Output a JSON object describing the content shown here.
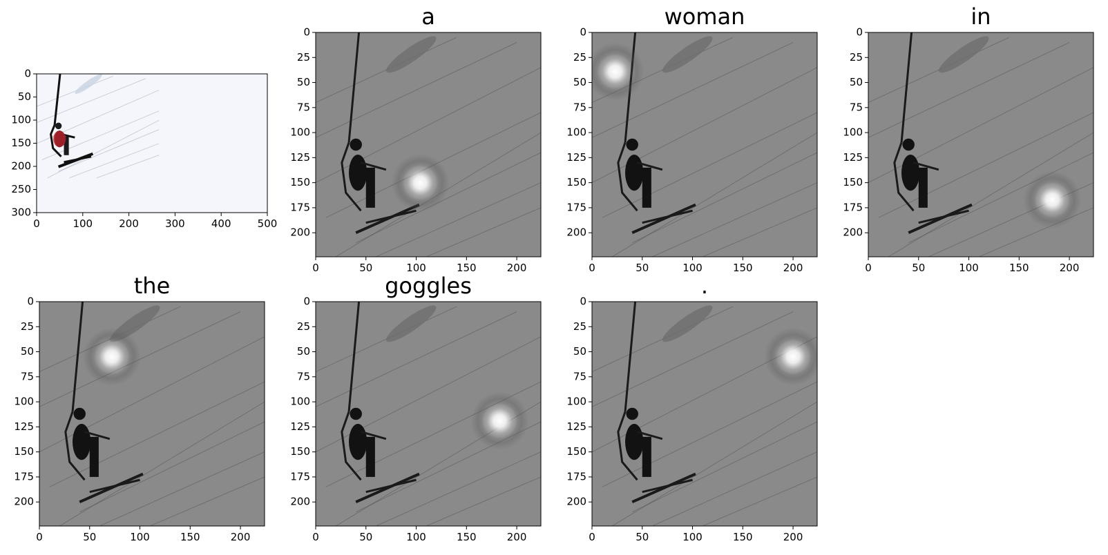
{
  "figure": {
    "background": "#ffffff",
    "bg_gray_original": "#f4f6fb",
    "bg_gray_attention": "#8a8a8a"
  },
  "chart_data": [
    {
      "type": "image",
      "role": "original",
      "title": "",
      "xlim": [
        0,
        500
      ],
      "ylim": [
        300,
        0
      ],
      "xticks": [
        0,
        100,
        200,
        300,
        400,
        500
      ],
      "yticks": [
        0,
        50,
        100,
        150,
        200,
        250,
        300
      ]
    },
    {
      "type": "heatmap",
      "title": "a",
      "xlim": [
        0,
        224
      ],
      "ylim": [
        224,
        0
      ],
      "xticks": [
        0,
        50,
        100,
        150,
        200
      ],
      "yticks": [
        0,
        25,
        50,
        75,
        100,
        125,
        150,
        175,
        200
      ],
      "attention_peak": {
        "x": 104,
        "y": 150
      }
    },
    {
      "type": "heatmap",
      "title": "woman",
      "xlim": [
        0,
        224
      ],
      "ylim": [
        224,
        0
      ],
      "xticks": [
        0,
        50,
        100,
        150,
        200
      ],
      "yticks": [
        0,
        25,
        50,
        75,
        100,
        125,
        150,
        175,
        200
      ],
      "attention_peak": {
        "x": 23,
        "y": 39
      }
    },
    {
      "type": "heatmap",
      "title": "in",
      "xlim": [
        0,
        224
      ],
      "ylim": [
        224,
        0
      ],
      "xticks": [
        0,
        50,
        100,
        150,
        200
      ],
      "yticks": [
        0,
        25,
        50,
        75,
        100,
        125,
        150,
        175,
        200
      ],
      "attention_peak": {
        "x": 183,
        "y": 167
      }
    },
    {
      "type": "heatmap",
      "title": "the",
      "xlim": [
        0,
        224
      ],
      "ylim": [
        224,
        0
      ],
      "xticks": [
        0,
        50,
        100,
        150,
        200
      ],
      "yticks": [
        0,
        25,
        50,
        75,
        100,
        125,
        150,
        175,
        200
      ],
      "attention_peak": {
        "x": 72,
        "y": 55
      }
    },
    {
      "type": "heatmap",
      "title": "goggles",
      "xlim": [
        0,
        224
      ],
      "ylim": [
        224,
        0
      ],
      "xticks": [
        0,
        50,
        100,
        150,
        200
      ],
      "yticks": [
        0,
        25,
        50,
        75,
        100,
        125,
        150,
        175,
        200
      ],
      "attention_peak": {
        "x": 183,
        "y": 119
      }
    },
    {
      "type": "heatmap",
      "title": ".",
      "xlim": [
        0,
        224
      ],
      "ylim": [
        224,
        0
      ],
      "xticks": [
        0,
        50,
        100,
        150,
        200
      ],
      "yticks": [
        0,
        25,
        50,
        75,
        100,
        125,
        150,
        175,
        200
      ],
      "attention_peak": {
        "x": 200,
        "y": 55
      }
    }
  ]
}
